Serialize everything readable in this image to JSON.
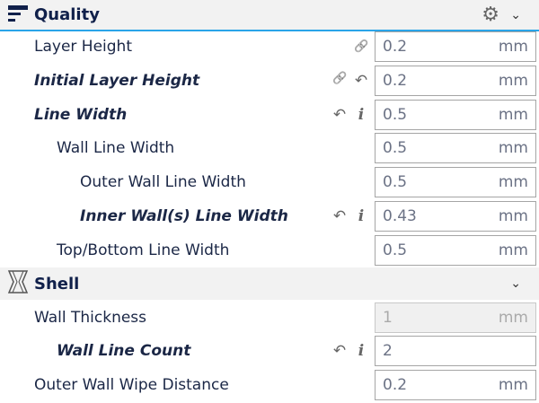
{
  "categories": [
    {
      "title": "Quality",
      "icon": "quality-icon",
      "has_gear": true
    },
    {
      "title": "Shell",
      "icon": "shell-icon",
      "has_gear": false
    }
  ],
  "accent_color": "#2aa4e8",
  "rows": [
    {
      "label": "Layer Height",
      "level": 0,
      "italic": false,
      "icons": [
        "link-icon"
      ],
      "value": "0.2",
      "unit": "mm",
      "disabled": false
    },
    {
      "label": "Initial Layer Height",
      "level": 0,
      "italic": true,
      "icons": [
        "link-icon",
        "reset-icon"
      ],
      "value": "0.2",
      "unit": "mm",
      "disabled": false
    },
    {
      "label": "Line Width",
      "level": 0,
      "italic": true,
      "icons": [
        "reset-icon",
        "info-icon"
      ],
      "value": "0.5",
      "unit": "mm",
      "disabled": false
    },
    {
      "label": "Wall Line Width",
      "level": 1,
      "italic": false,
      "icons": [],
      "value": "0.5",
      "unit": "mm",
      "disabled": false
    },
    {
      "label": "Outer Wall Line Width",
      "level": 2,
      "italic": false,
      "icons": [],
      "value": "0.5",
      "unit": "mm",
      "disabled": false
    },
    {
      "label": "Inner Wall(s) Line Width",
      "level": 2,
      "italic": true,
      "icons": [
        "reset-icon",
        "info-icon"
      ],
      "value": "0.43",
      "unit": "mm",
      "disabled": false
    },
    {
      "label": "Top/Bottom Line Width",
      "level": 1,
      "italic": false,
      "icons": [],
      "value": "0.5",
      "unit": "mm",
      "disabled": false
    },
    {
      "label": "Wall Thickness",
      "level": 0,
      "italic": false,
      "icons": [],
      "value": "1",
      "unit": "mm",
      "disabled": true
    },
    {
      "label": "Wall Line Count",
      "level": 1,
      "italic": true,
      "icons": [
        "reset-icon",
        "info-icon"
      ],
      "value": "2",
      "unit": "",
      "disabled": false
    },
    {
      "label": "Outer Wall Wipe Distance",
      "level": 0,
      "italic": false,
      "icons": [],
      "value": "0.2",
      "unit": "mm",
      "disabled": false
    }
  ]
}
